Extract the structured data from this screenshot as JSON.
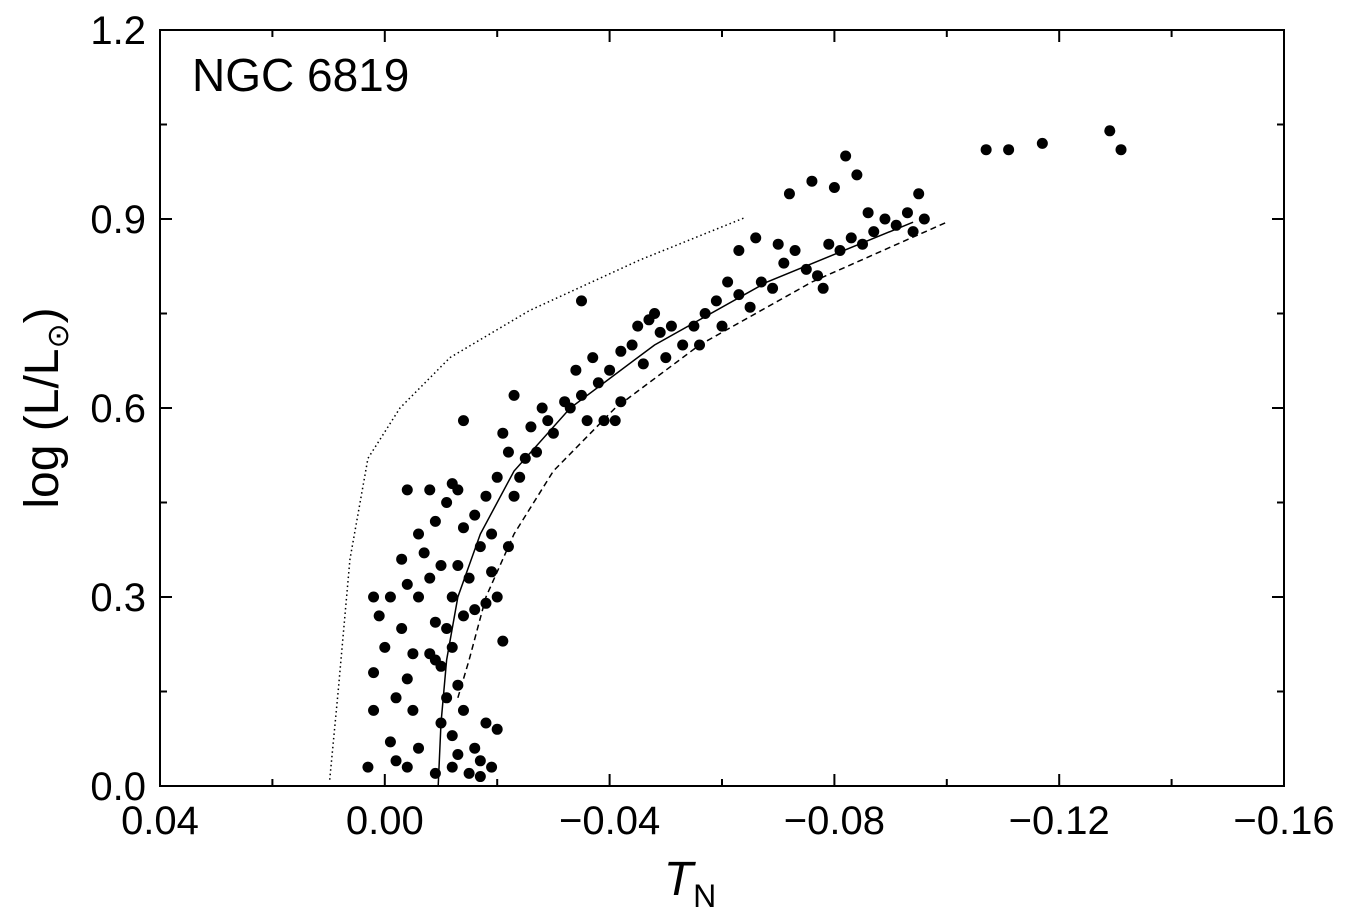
{
  "chart_data": {
    "type": "scatter",
    "annotation": "NGC 6819",
    "x_label": {
      "main": "T",
      "sub": "N"
    },
    "y_label": {
      "main": "log (L/L",
      "sub": "⊙",
      "end": ")"
    },
    "xlim": [
      0.04,
      -0.16
    ],
    "ylim": [
      0,
      1.2
    ],
    "xticks": [
      {
        "value": 0.04,
        "label": "0.04"
      },
      {
        "value": 0,
        "label": "0.00"
      },
      {
        "value": -0.04,
        "label": "−0.04"
      },
      {
        "value": -0.08,
        "label": "−0.08"
      },
      {
        "value": -0.12,
        "label": "−0.12"
      },
      {
        "value": -0.16,
        "label": "−0.16"
      }
    ],
    "yticks": [
      {
        "value": 0,
        "label": "0.0"
      },
      0.3,
      0.6,
      0.9,
      1.2
    ],
    "xminorticks": [
      0.02,
      -0.02,
      -0.06,
      -0.1,
      -0.14
    ],
    "yminorticks": [
      0.15,
      0.45,
      0.75,
      1.05
    ],
    "color": "#000000",
    "series": [
      {
        "style": "marker",
        "x": [
          -0.009,
          -0.012,
          -0.013,
          -0.015,
          -0.017,
          -0.019,
          -0.02,
          -0.018,
          -0.012,
          -0.014,
          -0.011,
          -0.013,
          -0.016,
          -0.01,
          -0.004,
          -0.001,
          -0.002,
          -0.006,
          0.003,
          -0.005,
          -0.017,
          0.002,
          0.002,
          -0.002,
          -0.004,
          -0.005,
          -0.009,
          -0.003,
          0,
          0.001,
          -0.001,
          0.002,
          -0.004,
          -0.006,
          -0.008,
          -0.003,
          -0.007,
          -0.01,
          -0.012,
          -0.014,
          -0.016,
          -0.018,
          -0.015,
          -0.013,
          -0.019,
          -0.02,
          -0.021,
          -0.011,
          -0.009,
          -0.012,
          -0.008,
          -0.01,
          -0.006,
          -0.009,
          -0.011,
          -0.013,
          -0.014,
          -0.016,
          -0.018,
          -0.017,
          -0.019,
          -0.022,
          -0.012,
          -0.008,
          -0.004,
          -0.014,
          -0.02,
          -0.022,
          -0.024,
          -0.023,
          -0.025,
          -0.021,
          -0.023,
          -0.026,
          -0.028,
          -0.03,
          -0.032,
          -0.027,
          -0.029,
          -0.033,
          -0.035,
          -0.034,
          -0.036,
          -0.038,
          -0.037,
          -0.04,
          -0.039,
          -0.042,
          -0.042,
          -0.044,
          -0.045,
          -0.047,
          -0.049,
          -0.051,
          -0.053,
          -0.055,
          -0.057,
          -0.059,
          -0.061,
          -0.063,
          -0.065,
          -0.067,
          -0.069,
          -0.071,
          -0.073,
          -0.075,
          -0.077,
          -0.079,
          -0.081,
          -0.083,
          -0.085,
          -0.087,
          -0.089,
          -0.091,
          -0.093,
          -0.095,
          -0.096,
          -0.094,
          -0.072,
          -0.076,
          -0.082,
          -0.084,
          -0.08,
          -0.035,
          -0.063,
          -0.066,
          -0.06,
          -0.056,
          -0.05,
          -0.046,
          -0.041,
          -0.048,
          -0.07,
          -0.078,
          -0.086,
          -0.107,
          -0.111,
          -0.117,
          -0.129,
          -0.131
        ],
        "y": [
          0.02,
          0.03,
          0.05,
          0.02,
          0.04,
          0.03,
          0.09,
          0.1,
          0.08,
          0.12,
          0.14,
          0.16,
          0.06,
          0.1,
          0.03,
          0.07,
          0.04,
          0.06,
          0.03,
          0.12,
          0.015,
          0.12,
          0.18,
          0.14,
          0.17,
          0.21,
          0.2,
          0.25,
          0.22,
          0.27,
          0.3,
          0.3,
          0.32,
          0.3,
          0.33,
          0.36,
          0.37,
          0.35,
          0.3,
          0.27,
          0.28,
          0.29,
          0.33,
          0.35,
          0.34,
          0.3,
          0.23,
          0.25,
          0.26,
          0.22,
          0.21,
          0.19,
          0.4,
          0.42,
          0.45,
          0.47,
          0.41,
          0.43,
          0.46,
          0.38,
          0.4,
          0.38,
          0.48,
          0.47,
          0.47,
          0.58,
          0.49,
          0.53,
          0.49,
          0.46,
          0.52,
          0.56,
          0.62,
          0.57,
          0.6,
          0.56,
          0.61,
          0.53,
          0.58,
          0.6,
          0.62,
          0.66,
          0.58,
          0.64,
          0.68,
          0.66,
          0.58,
          0.61,
          0.69,
          0.7,
          0.73,
          0.74,
          0.72,
          0.73,
          0.7,
          0.73,
          0.75,
          0.77,
          0.8,
          0.78,
          0.76,
          0.8,
          0.79,
          0.83,
          0.85,
          0.82,
          0.81,
          0.86,
          0.85,
          0.87,
          0.86,
          0.88,
          0.9,
          0.89,
          0.91,
          0.94,
          0.9,
          0.88,
          0.94,
          0.96,
          1.0,
          0.97,
          0.95,
          0.77,
          0.85,
          0.87,
          0.73,
          0.7,
          0.68,
          0.67,
          0.58,
          0.75,
          0.86,
          0.79,
          0.91,
          1.01,
          1.01,
          1.02,
          1.04,
          1.01
        ]
      },
      {
        "style": "solid",
        "x": [
          -0.0095,
          -0.01,
          -0.011,
          -0.013,
          -0.017,
          -0.023,
          -0.033,
          -0.048,
          -0.068,
          -0.094
        ],
        "y": [
          0,
          0.1,
          0.2,
          0.3,
          0.4,
          0.5,
          0.6,
          0.7,
          0.8,
          0.895
        ]
      },
      {
        "style": "dashed",
        "x": [
          -0.013,
          -0.015,
          -0.018,
          -0.023,
          -0.03,
          -0.041,
          -0.056,
          -0.076,
          -0.1
        ],
        "y": [
          0.14,
          0.2,
          0.3,
          0.4,
          0.5,
          0.6,
          0.7,
          0.8,
          0.895
        ]
      },
      {
        "style": "dotted",
        "x": [
          0.0098,
          0.0083,
          0.0062,
          0.003,
          -0.0027,
          -0.0116,
          -0.0258,
          -0.0454,
          -0.0643
        ],
        "y": [
          0.01,
          0.15,
          0.36,
          0.52,
          0.6,
          0.68,
          0.755,
          0.835,
          0.903
        ]
      }
    ]
  }
}
